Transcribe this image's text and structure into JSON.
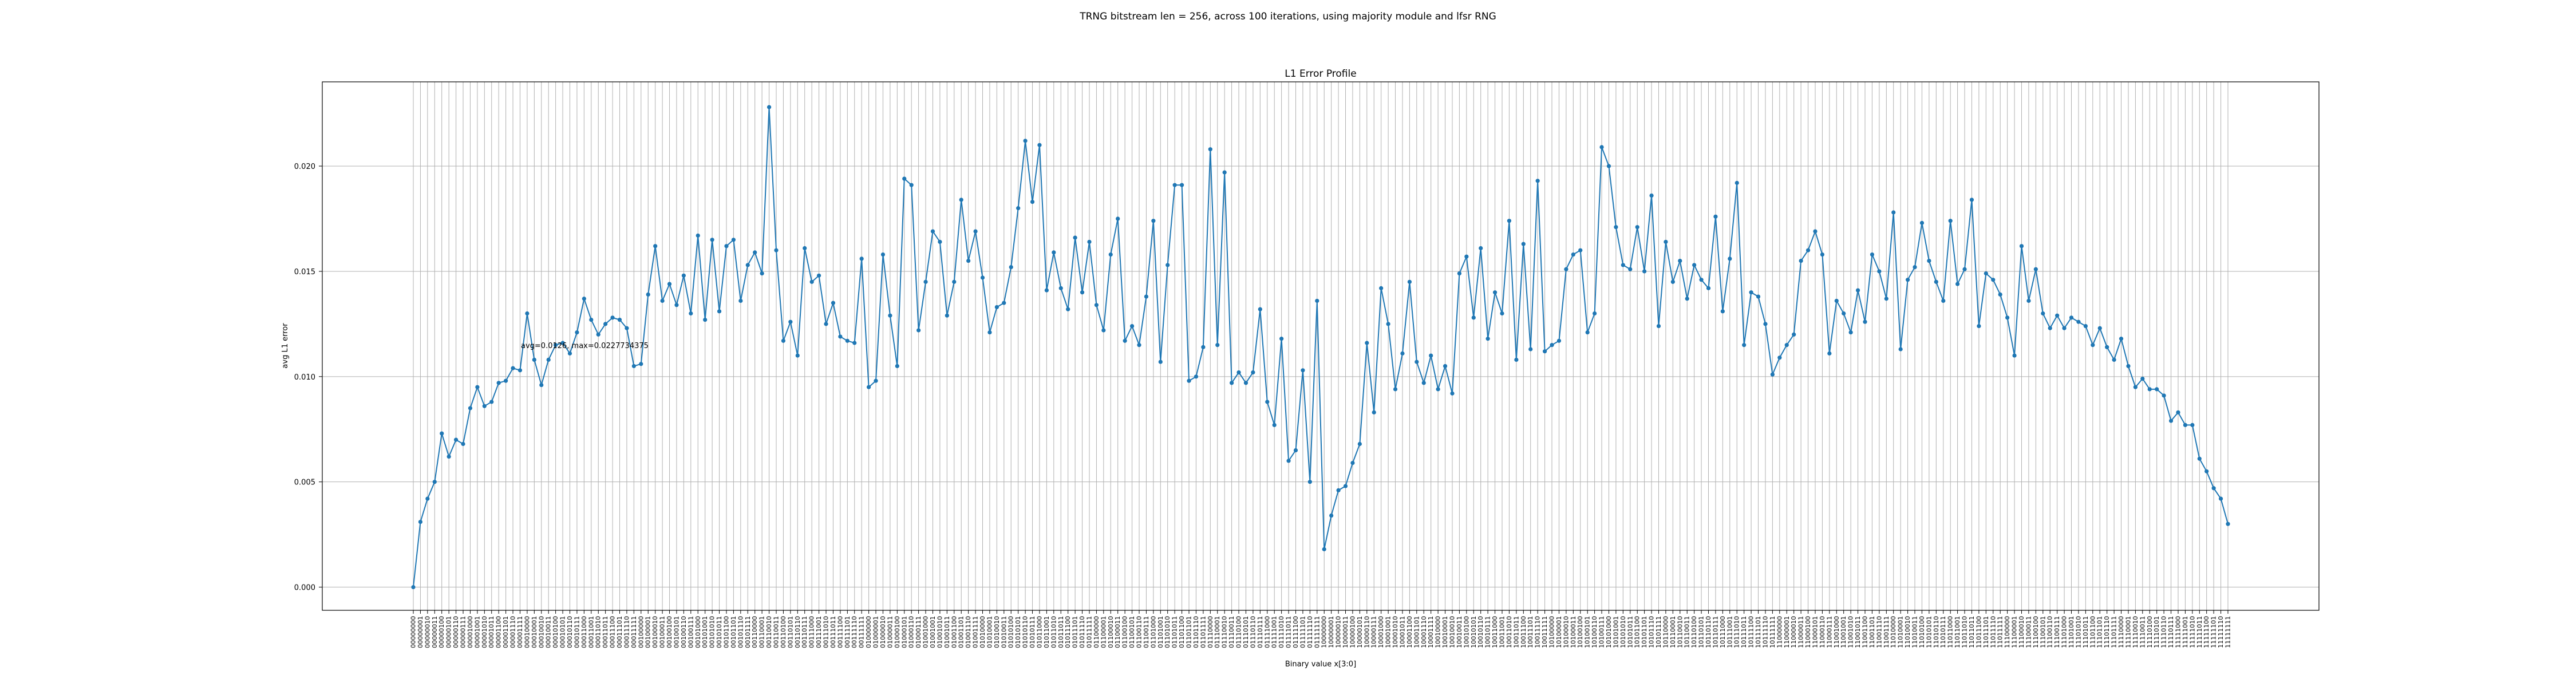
{
  "figure": {
    "suptitle": "TRNG bitstream len = 256, across 100 iterations, using majority module and lfsr RNG"
  },
  "chart_data": {
    "type": "line",
    "title": "L1 Error Profile",
    "xlabel": "Binary value x[3:0]",
    "ylabel": "avg L1 error",
    "ylim": [
      -0.0011,
      0.024
    ],
    "yticks": [
      "0.000",
      "0.005",
      "0.010",
      "0.015",
      "0.020"
    ],
    "ytick_values": [
      0.0,
      0.005,
      0.01,
      0.015,
      0.02
    ],
    "grid": true,
    "annotation": "avg=0.0126, max=0.0227734375",
    "series": [
      {
        "color": "#1f77b4",
        "marker": "circle",
        "values": [
          0.0,
          0.0031,
          0.0042,
          0.005,
          0.0073,
          0.0062,
          0.007,
          0.0068,
          0.0085,
          0.0095,
          0.0086,
          0.0088,
          0.0097,
          0.0098,
          0.0104,
          0.0103,
          0.013,
          0.0108,
          0.0096,
          0.0108,
          0.0115,
          0.0116,
          0.0111,
          0.0121,
          0.0137,
          0.0127,
          0.012,
          0.0125,
          0.0128,
          0.0127,
          0.0123,
          0.0105,
          0.0106,
          0.0139,
          0.0162,
          0.0136,
          0.0144,
          0.0134,
          0.0148,
          0.013,
          0.0167,
          0.0127,
          0.0165,
          0.0131,
          0.0162,
          0.0165,
          0.0136,
          0.0153,
          0.0159,
          0.0149,
          0.0228,
          0.016,
          0.0117,
          0.0126,
          0.011,
          0.0161,
          0.0145,
          0.0148,
          0.0125,
          0.0135,
          0.0119,
          0.0117,
          0.0116,
          0.0156,
          0.0095,
          0.0098,
          0.0158,
          0.0129,
          0.0105,
          0.0194,
          0.0191,
          0.0122,
          0.0145,
          0.0169,
          0.0164,
          0.0129,
          0.0145,
          0.0184,
          0.0155,
          0.0169,
          0.0147,
          0.0121,
          0.0133,
          0.0135,
          0.0152,
          0.018,
          0.0212,
          0.0183,
          0.021,
          0.0141,
          0.0159,
          0.0142,
          0.0132,
          0.0166,
          0.014,
          0.0164,
          0.0134,
          0.0122,
          0.0158,
          0.0175,
          0.0117,
          0.0124,
          0.0115,
          0.0138,
          0.0174,
          0.0107,
          0.0153,
          0.0191,
          0.0191,
          0.0098,
          0.01,
          0.0114,
          0.0208,
          0.0115,
          0.0197,
          0.0097,
          0.0102,
          0.0097,
          0.0102,
          0.0132,
          0.0088,
          0.0077,
          0.0118,
          0.006,
          0.0065,
          0.0103,
          0.005,
          0.0136,
          0.0018,
          0.0034,
          0.0046,
          0.0048,
          0.0059,
          0.0068,
          0.0116,
          0.0083,
          0.0142,
          0.0125,
          0.0094,
          0.0111,
          0.0145,
          0.0107,
          0.0097,
          0.011,
          0.0094,
          0.0105,
          0.0092,
          0.0149,
          0.0157,
          0.0128,
          0.0161,
          0.0118,
          0.014,
          0.013,
          0.0174,
          0.0108,
          0.0163,
          0.0113,
          0.0193,
          0.0112,
          0.0115,
          0.0117,
          0.0151,
          0.0158,
          0.016,
          0.0121,
          0.013,
          0.0209,
          0.02,
          0.0171,
          0.0153,
          0.0151,
          0.0171,
          0.015,
          0.0186,
          0.0124,
          0.0164,
          0.0145,
          0.0155,
          0.0137,
          0.0153,
          0.0146,
          0.0142,
          0.0176,
          0.0131,
          0.0156,
          0.0192,
          0.0115,
          0.014,
          0.0138,
          0.0125,
          0.0101,
          0.0109,
          0.0115,
          0.012,
          0.0155,
          0.016,
          0.0169,
          0.0158,
          0.0111,
          0.0136,
          0.013,
          0.0121,
          0.0141,
          0.0126,
          0.0158,
          0.015,
          0.0137,
          0.0178,
          0.0113,
          0.0146,
          0.0152,
          0.0173,
          0.0155,
          0.0145,
          0.0136,
          0.0174,
          0.0144,
          0.0151,
          0.0184,
          0.0124,
          0.0149,
          0.0146,
          0.0139,
          0.0128,
          0.011,
          0.0162,
          0.0136,
          0.0151,
          0.013,
          0.0123,
          0.0129,
          0.0123,
          0.0128,
          0.0126,
          0.0124,
          0.0115,
          0.0123,
          0.0114,
          0.0108,
          0.0118,
          0.0105,
          0.0095,
          0.0099,
          0.0094,
          0.0094,
          0.0091,
          0.0079,
          0.0083,
          0.0077,
          0.0077,
          0.0061,
          0.0055,
          0.0047,
          0.0042,
          0.003
        ]
      }
    ]
  }
}
